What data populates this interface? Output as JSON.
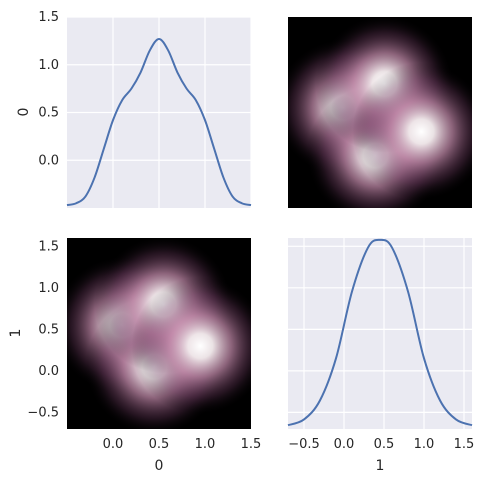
{
  "colors": {
    "axes_bg": "#eaeaf2",
    "grid": "#ffffff",
    "line": "#4c72b0",
    "text": "#262626"
  },
  "chart_data": [
    {
      "type": "line",
      "panel": "diag-0",
      "variable": "0",
      "xlabel": "",
      "ylabel": "0",
      "grid": true,
      "xlim": [
        -0.5,
        1.5
      ],
      "ylim": [
        -0.5,
        1.5
      ],
      "xticks": [],
      "yticks": [
        0.0,
        0.5,
        1.0,
        1.5
      ],
      "ytick_labels": [
        "0.0",
        "0.5",
        "1.0",
        "1.5"
      ],
      "x": [
        -0.5,
        -0.4,
        -0.3,
        -0.2,
        -0.1,
        0.0,
        0.1,
        0.2,
        0.3,
        0.4,
        0.5,
        0.6,
        0.7,
        0.8,
        0.9,
        1.0,
        1.1,
        1.2,
        1.3,
        1.4,
        1.5
      ],
      "y": [
        -0.47,
        -0.45,
        -0.38,
        -0.18,
        0.12,
        0.42,
        0.63,
        0.75,
        0.92,
        1.15,
        1.27,
        1.15,
        0.92,
        0.75,
        0.63,
        0.42,
        0.12,
        -0.18,
        -0.38,
        -0.45,
        -0.47
      ]
    },
    {
      "type": "heatmap",
      "panel": "upper-0-1",
      "description_peaks_data_units": [
        [
          0.1,
          0.55
        ],
        [
          0.45,
          0.05
        ],
        [
          0.55,
          0.8
        ],
        [
          0.95,
          0.3
        ]
      ],
      "xlim": [
        -0.5,
        1.5
      ],
      "ylim": [
        -0.5,
        1.5
      ],
      "xticks": [],
      "yticks": []
    },
    {
      "type": "heatmap",
      "panel": "lower-1-0",
      "xlabel": "0",
      "ylabel": "1",
      "peaks": [
        [
          0.1,
          0.55
        ],
        [
          0.45,
          0.05
        ],
        [
          0.55,
          0.8
        ],
        [
          0.95,
          0.3
        ]
      ],
      "xlim": [
        -0.5,
        1.5
      ],
      "ylim": [
        -0.7,
        1.6
      ],
      "xticks": [
        0.0,
        0.5,
        1.0,
        1.5
      ],
      "xtick_labels": [
        "0.0",
        "0.5",
        "1.0",
        "1.5"
      ],
      "yticks": [
        -0.5,
        0.0,
        0.5,
        1.0,
        1.5
      ],
      "ytick_labels": [
        "−0.5",
        "0.0",
        "0.5",
        "1.0",
        "1.5"
      ]
    },
    {
      "type": "line",
      "panel": "diag-1",
      "variable": "1",
      "xlabel": "1",
      "ylabel": "",
      "grid": true,
      "xlim": [
        -0.7,
        1.6
      ],
      "ylim": [
        0,
        1
      ],
      "xticks": [
        -0.5,
        0.0,
        0.5,
        1.0,
        1.5
      ],
      "xtick_labels": [
        "−0.5",
        "0.0",
        "0.5",
        "1.0",
        "1.5"
      ],
      "x": [
        -0.7,
        -0.5,
        -0.3,
        -0.1,
        0.1,
        0.3,
        0.45,
        0.6,
        0.8,
        1.0,
        1.2,
        1.4,
        1.6
      ],
      "y": [
        0.02,
        0.05,
        0.15,
        0.37,
        0.72,
        0.95,
        0.99,
        0.95,
        0.72,
        0.37,
        0.15,
        0.05,
        0.02
      ]
    }
  ]
}
